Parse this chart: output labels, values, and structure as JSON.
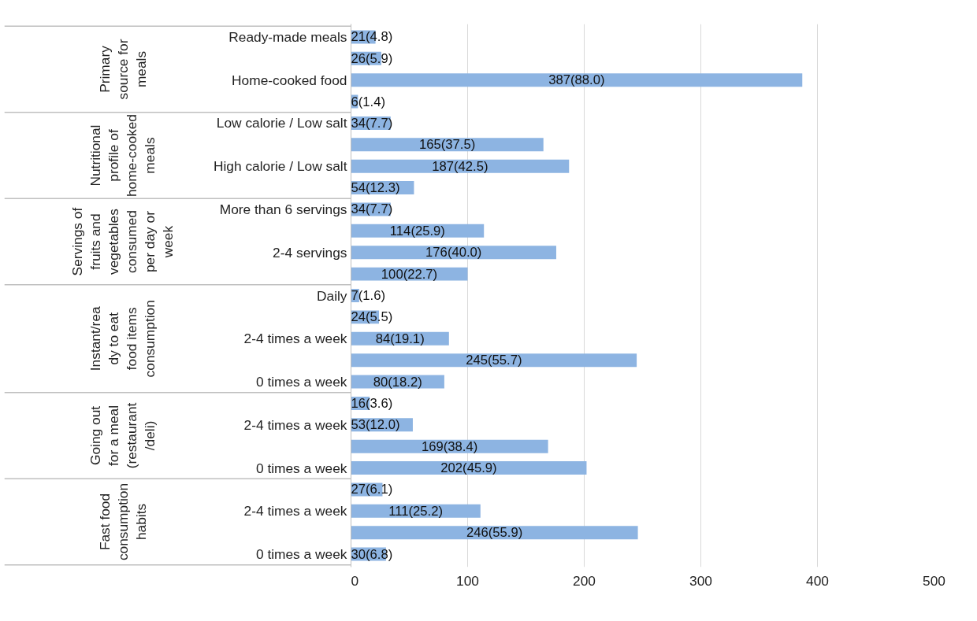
{
  "chart_data": {
    "type": "bar",
    "orientation": "horizontal",
    "categories": [
      "Ready-made meals",
      null,
      "Home-cooked food",
      null,
      "Low calorie / Low salt",
      null,
      "High calorie / Low salt",
      null,
      "More than 6 servings",
      null,
      "2-4 servings",
      null,
      "Daily",
      null,
      "2-4 times a week",
      null,
      "0 times a week",
      null,
      "2-4 times a week",
      null,
      "0 times a week",
      null,
      "2-4 times a week",
      null,
      "0 times a week"
    ],
    "values": [
      21,
      26,
      387,
      6,
      34,
      165,
      187,
      54,
      34,
      114,
      176,
      100,
      7,
      24,
      84,
      245,
      80,
      16,
      53,
      169,
      202,
      27,
      111,
      246,
      30
    ],
    "value_labels": [
      "21(4.8)",
      "26(5.9)",
      "387(88.0)",
      "6(1.4)",
      "34(7.7)",
      "165(37.5)",
      "187(42.5)",
      "54(12.3)",
      "34(7.7)",
      "114(25.9)",
      "176(40.0)",
      "100(22.7)",
      "7(1.6)",
      "24(5.5)",
      "84(19.1)",
      "245(55.7)",
      "80(18.2)",
      "16(3.6)",
      "53(12.0)",
      "169(38.4)",
      "202(45.9)",
      "27(6.1)",
      "111(25.2)",
      "246(55.9)",
      "30(6.8)"
    ],
    "color": "#8db4e2",
    "xlim": [
      0,
      500
    ],
    "xticks": [
      0,
      100,
      200,
      300,
      400,
      500
    ],
    "grid": "x",
    "annotations": [
      "Primary source for meals",
      "Nutritional profile of home-cooked meals",
      "Servings of fruits and vegetables consumed per day or week",
      "Instant/ready to eat food items consumption",
      "Going out for a meal (restaurant /deli)",
      "Fast food consumption habits"
    ]
  }
}
